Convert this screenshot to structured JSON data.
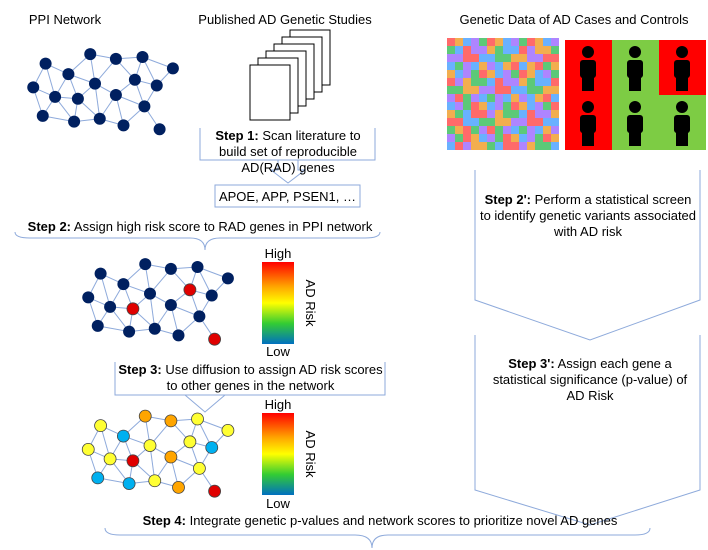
{
  "titles": {
    "ppi": "PPI Network",
    "studies": "Published AD Genetic Studies",
    "genetic": "Genetic Data of AD Cases and Controls"
  },
  "steps": {
    "step1": {
      "label": "Step 1:",
      "text": "Scan literature to build set of  reproducible AD(RAD) genes"
    },
    "step2": {
      "label": "Step 2:",
      "text": "Assign high risk score to RAD genes in PPI network"
    },
    "step3": {
      "label": "Step 3:",
      "text": "Use diffusion to assign AD risk scores to other genes in the network"
    },
    "step4": {
      "label": "Step 4:",
      "text": "Integrate genetic p-values and network scores to prioritize novel AD genes"
    },
    "step2p": {
      "label": "Step 2':",
      "text": "Perform a statistical screen to identify genetic variants associated with AD risk"
    },
    "step3p": {
      "label": "Step 3':",
      "text": "Assign each gene a statistical significance (p-value) of AD Risk"
    }
  },
  "genes": "APOE, APP, PSEN1, …",
  "risk_scales": [
    {
      "high": "High",
      "axis": "AD Risk",
      "low": "Low"
    },
    {
      "high": "High",
      "axis": "AD Risk",
      "low": "Low"
    }
  ]
}
